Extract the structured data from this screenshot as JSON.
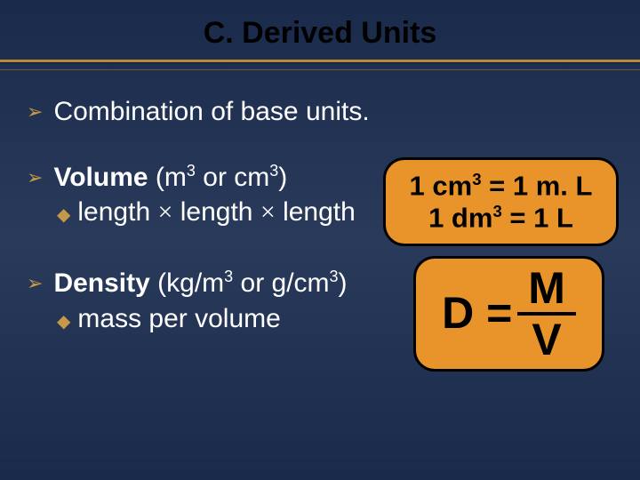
{
  "title": "C. Derived Units",
  "colors": {
    "background_gradient_top": "#1a2a4a",
    "background_gradient_mid": "#2a3a5a",
    "divider": "#b88a3a",
    "bullet_accent": "#c49a4a",
    "callout_bg": "#e8942a",
    "callout_border": "#000000",
    "title_color": "#000000",
    "text_color": "#ffffff"
  },
  "bullets": {
    "b1": {
      "text": "Combination of base units."
    },
    "b2": {
      "label": "Volume",
      "units_prefix": " (m",
      "units_mid": " or cm",
      "units_suffix": ")",
      "sup1": "3",
      "sup2": "3",
      "sub": {
        "w1": "length ",
        "op": "×",
        "w2": " length ",
        "w3": " length"
      },
      "callout": {
        "line1_a": "1 cm",
        "line1_sup": "3",
        "line1_b": " = 1 m. L",
        "line2_a": "1 dm",
        "line2_sup": "3",
        "line2_b": " = 1 L"
      }
    },
    "b3": {
      "label": "Density",
      "units_prefix": " (kg/m",
      "units_mid": " or g/cm",
      "units_suffix": ")",
      "sup1": "3",
      "sup2": "3",
      "sub": "mass per volume",
      "callout": {
        "lhs": "D = ",
        "num": "M",
        "den": "V"
      }
    }
  }
}
